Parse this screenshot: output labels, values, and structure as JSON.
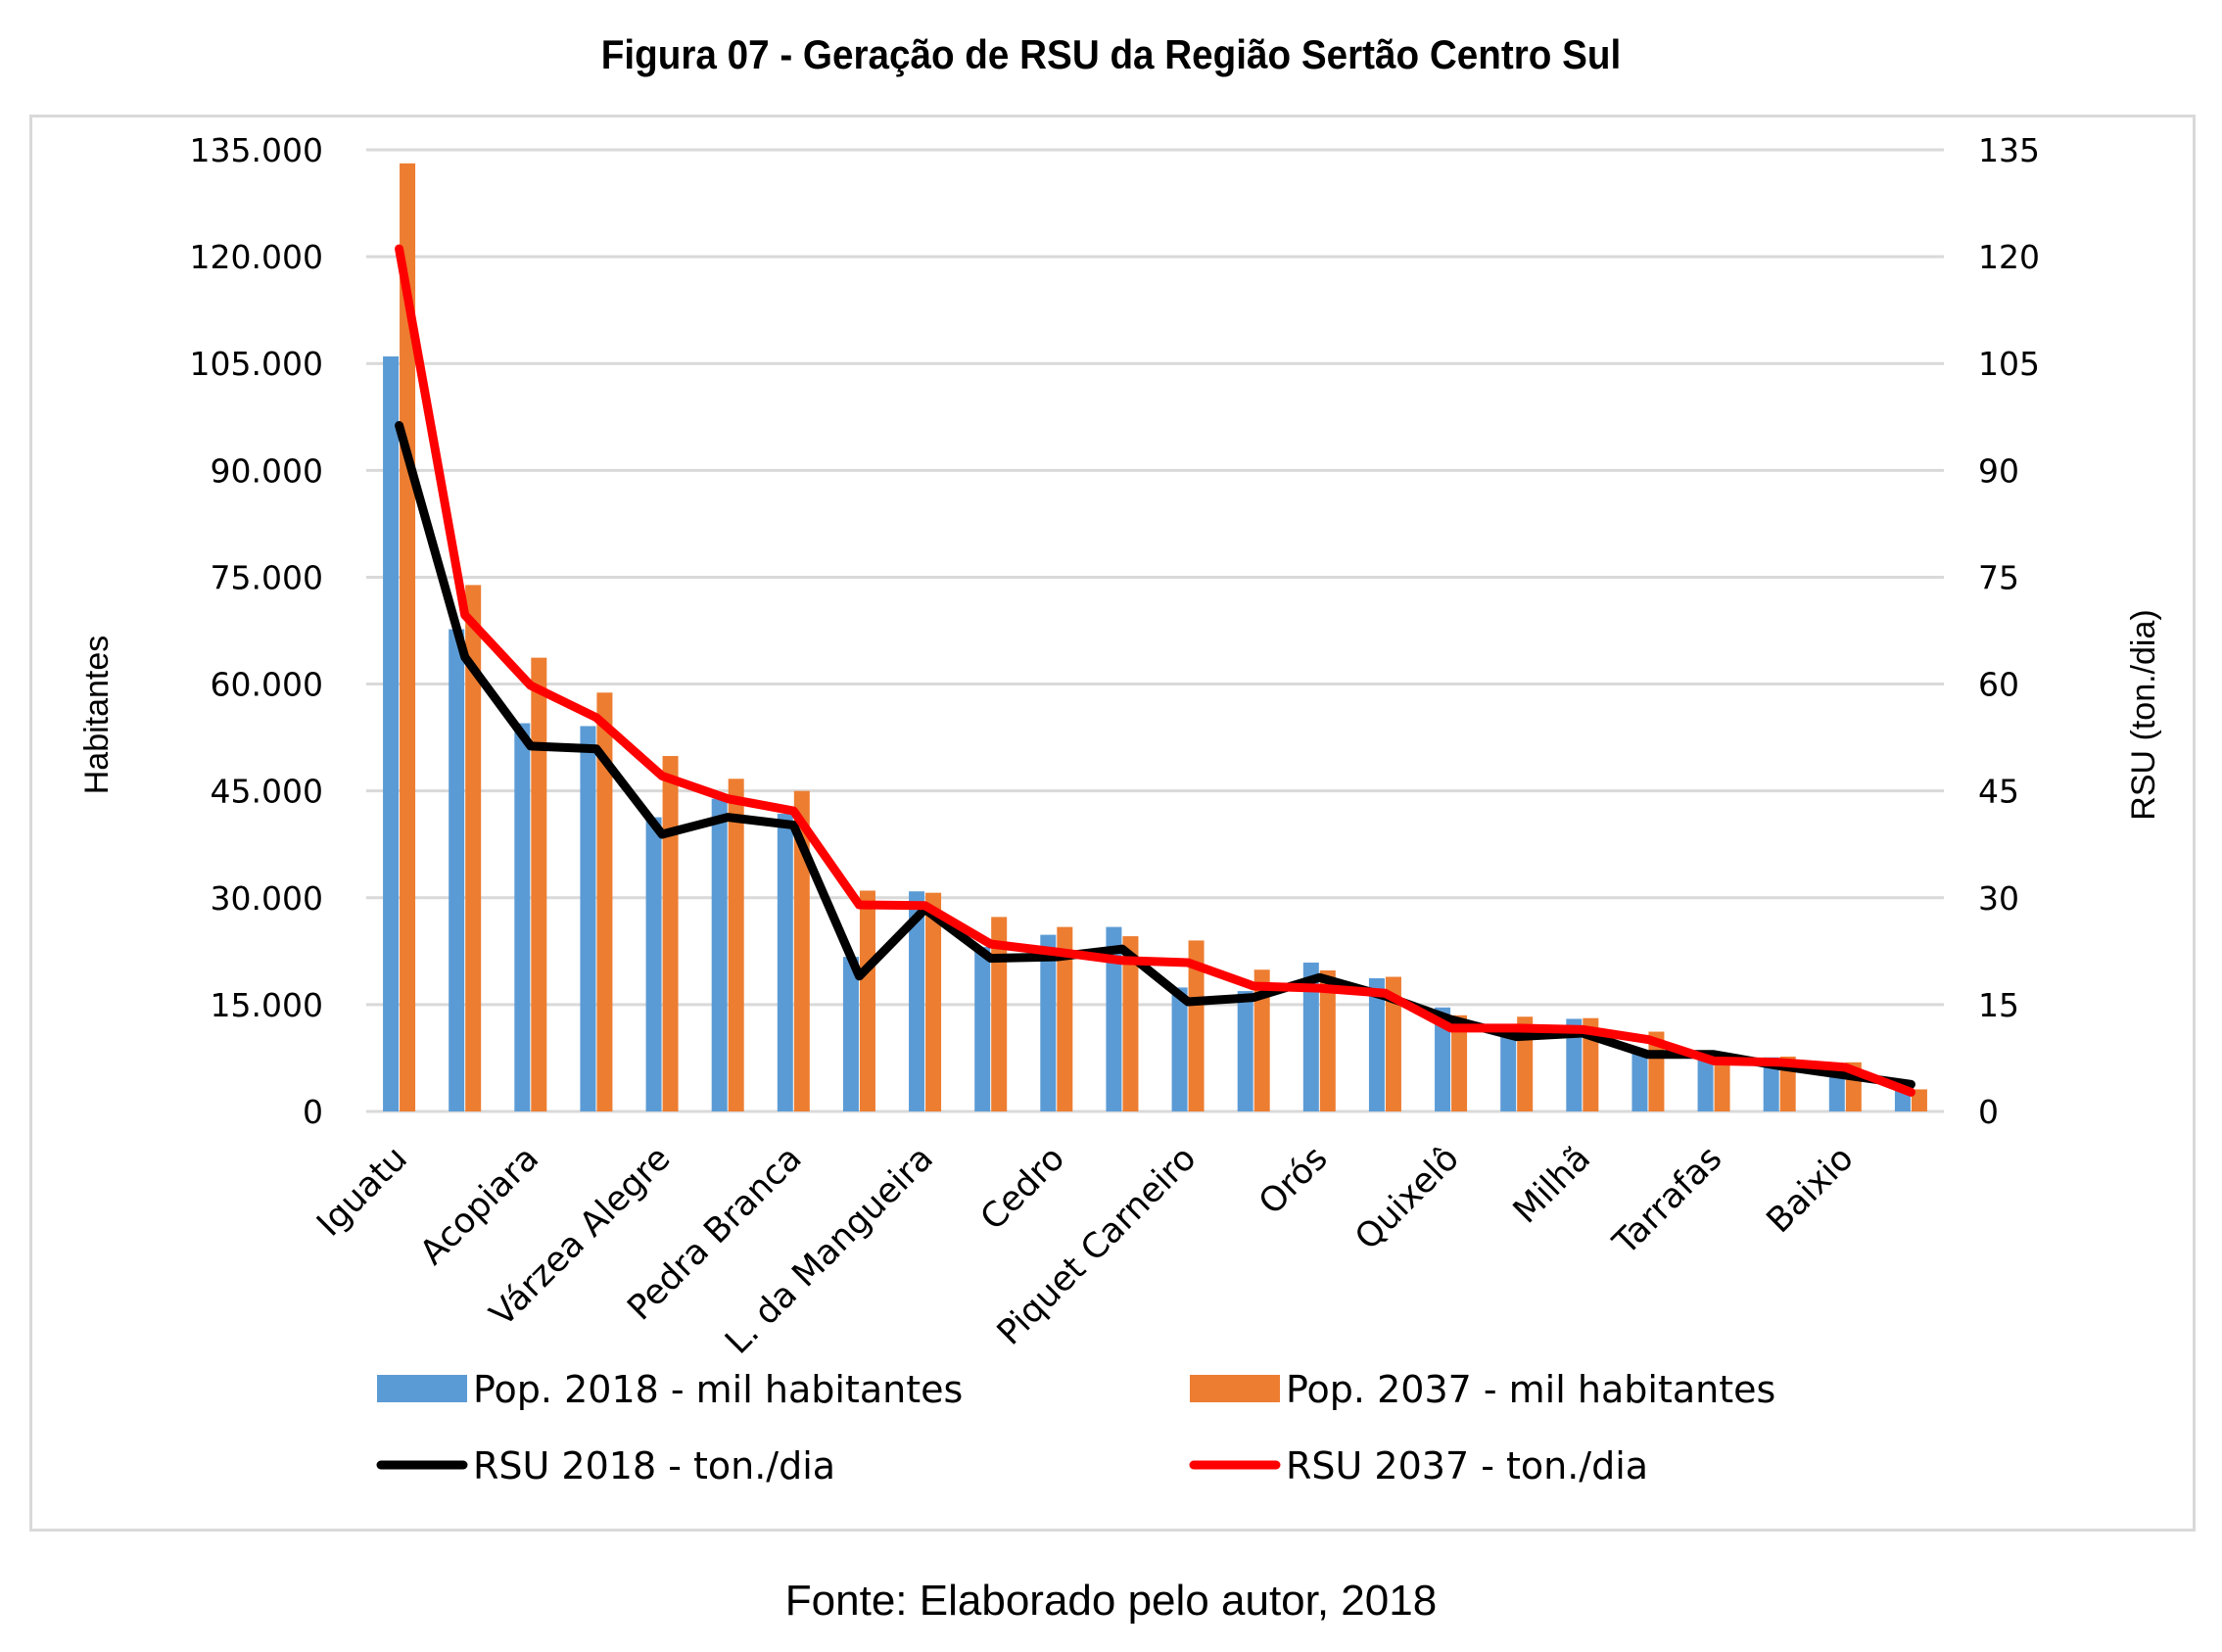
{
  "figure": {
    "title": "Figura 07 - Geração de RSU da Região Sertão Centro Sul",
    "source": "Fonte: Elaborado pelo autor, 2018"
  },
  "chart_data": {
    "type": "bar",
    "title": "Figura 07 - Geração de RSU da Região Sertão Centro Sul",
    "xlabel": "",
    "ylabel": "Habitantes",
    "y2label": "RSU (ton./dia)",
    "ylim": [
      0,
      135000
    ],
    "y2lim": [
      0,
      135
    ],
    "yticks": [
      "0",
      "15.000",
      "30.000",
      "45.000",
      "60.000",
      "75.000",
      "90.000",
      "105.000",
      "120.000",
      "135.000"
    ],
    "yticks_values": [
      0,
      15000,
      30000,
      45000,
      60000,
      75000,
      90000,
      105000,
      120000,
      135000
    ],
    "y2ticks": [
      "0",
      "15",
      "30",
      "45",
      "60",
      "75",
      "90",
      "105",
      "120",
      "135"
    ],
    "grid": true,
    "legend_position": "bottom",
    "category_count": 24,
    "category_labels": [
      {
        "index": 0,
        "label": "Iguatu"
      },
      {
        "index": 2,
        "label": "Acopiara"
      },
      {
        "index": 4,
        "label": "Várzea Alegre"
      },
      {
        "index": 6,
        "label": "Pedra Branca"
      },
      {
        "index": 8,
        "label": "L. da Mangueira"
      },
      {
        "index": 10,
        "label": "Cedro"
      },
      {
        "index": 12,
        "label": "Piquet Carneiro"
      },
      {
        "index": 14,
        "label": "Orós"
      },
      {
        "index": 16,
        "label": "Quixelô"
      },
      {
        "index": 18,
        "label": "Milhã"
      },
      {
        "index": 20,
        "label": "Tarrafas"
      },
      {
        "index": 22,
        "label": "Baixio"
      }
    ],
    "series": [
      {
        "name": "Pop. 2018 - mil habitantes",
        "type": "bar",
        "axis": "left",
        "color": "#5b9bd5",
        "values": [
          106000,
          67700,
          54500,
          54100,
          41300,
          43900,
          41800,
          21700,
          30900,
          23100,
          24800,
          25900,
          17400,
          16900,
          20900,
          18700,
          14600,
          12200,
          13000,
          8400,
          8500,
          7600,
          5000,
          2900
        ]
      },
      {
        "name": "Pop.  2037 - mil habitantes",
        "type": "bar",
        "axis": "left",
        "color": "#ed7d31",
        "values": [
          133100,
          73900,
          63700,
          58800,
          49900,
          46700,
          45000,
          31000,
          30700,
          27300,
          25900,
          24600,
          24000,
          19900,
          19800,
          18900,
          13500,
          13300,
          13100,
          11200,
          7100,
          7700,
          6900,
          3100
        ]
      },
      {
        "name": "RSU 2018 - ton./dia",
        "type": "line",
        "axis": "right",
        "color": "#000000",
        "values": [
          96.3,
          63.8,
          51.3,
          50.9,
          38.9,
          41.3,
          40.2,
          19.0,
          28.4,
          21.5,
          21.7,
          22.8,
          15.4,
          16.0,
          18.8,
          16.2,
          12.9,
          10.5,
          11.0,
          8.0,
          8.0,
          6.4,
          5.1,
          3.8
        ]
      },
      {
        "name": "RSU 2037 - ton./dia",
        "type": "line",
        "axis": "right",
        "color": "#ff0000",
        "values": [
          121.1,
          69.7,
          59.8,
          55.3,
          47.1,
          43.9,
          42.2,
          29.0,
          28.9,
          23.5,
          22.4,
          21.2,
          20.9,
          17.6,
          17.3,
          16.6,
          11.7,
          11.7,
          11.5,
          10.1,
          7.1,
          6.9,
          6.2,
          2.7
        ]
      }
    ]
  }
}
